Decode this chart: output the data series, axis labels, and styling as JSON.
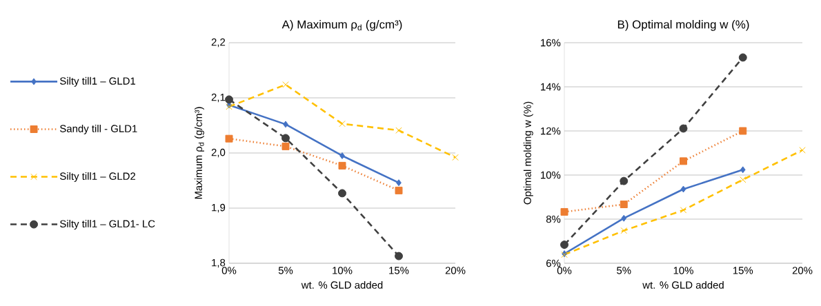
{
  "chart_data": [
    {
      "type": "line",
      "title": "A) Maximum ρ$_{d}$ (g/cm³)",
      "xlabel": "wt. % GLD added",
      "ylabel": "Maximum ρ$_{d}$ (g/cm³)",
      "categories": [
        "0%",
        "5%",
        "10%",
        "15%",
        "20%"
      ],
      "ylim": [
        1.8,
        2.2
      ],
      "yticks": [
        {
          "value": 1.8,
          "label": "1,8"
        },
        {
          "value": 1.9,
          "label": "1,9"
        },
        {
          "value": 2.0,
          "label": "2,0"
        },
        {
          "value": 2.1,
          "label": "2,1"
        },
        {
          "value": 2.2,
          "label": "2,2"
        }
      ],
      "grid": "y",
      "legend": "left",
      "series": [
        {
          "name": "Silty till1 – GLD1",
          "color": "#4472c4",
          "marker": "diamond",
          "line_style": "solid",
          "values": [
            2.087,
            2.052,
            1.995,
            1.946,
            null
          ]
        },
        {
          "name": "Sandy till - GLD1",
          "color": "#ed7d31",
          "marker": "square",
          "line_style": "dotted",
          "values": [
            2.026,
            2.012,
            1.977,
            1.932,
            null
          ]
        },
        {
          "name": "Silty till1 – GLD2",
          "color": "#ffc000",
          "marker": "cross",
          "line_style": "dashed",
          "values": [
            2.084,
            2.124,
            2.053,
            2.041,
            1.992
          ]
        },
        {
          "name": "Silty till1 – GLD1- LC",
          "color": "#404040",
          "marker": "circle",
          "line_style": "dashed",
          "values": [
            2.097,
            2.027,
            1.927,
            1.813,
            null
          ]
        }
      ]
    },
    {
      "type": "line",
      "title": "B) Optimal molding w (%)",
      "xlabel": "wt. % GLD added",
      "ylabel": "Optimal molding w (%)",
      "categories": [
        "0%",
        "5%",
        "10%",
        "15%",
        "20%"
      ],
      "ylim": [
        6,
        16
      ],
      "yticks": [
        {
          "value": 6,
          "label": "6%"
        },
        {
          "value": 8,
          "label": "8%"
        },
        {
          "value": 10,
          "label": "10%"
        },
        {
          "value": 12,
          "label": "12%"
        },
        {
          "value": 14,
          "label": "14%"
        },
        {
          "value": 16,
          "label": "16%"
        }
      ],
      "grid": "y",
      "series": [
        {
          "color": "#4472c4",
          "marker": "diamond",
          "line_style": "solid",
          "values": [
            6.43,
            8.04,
            9.36,
            10.24,
            null
          ]
        },
        {
          "color": "#ed7d31",
          "marker": "square",
          "line_style": "dotted",
          "values": [
            8.33,
            8.67,
            10.63,
            12.0,
            null
          ]
        },
        {
          "color": "#ffc000",
          "marker": "cross",
          "line_style": "dashed",
          "values": [
            6.39,
            7.48,
            8.41,
            9.79,
            11.13
          ]
        },
        {
          "color": "#404040",
          "marker": "circle",
          "line_style": "dashed",
          "values": [
            6.84,
            9.73,
            12.11,
            15.33,
            null
          ]
        }
      ]
    }
  ]
}
